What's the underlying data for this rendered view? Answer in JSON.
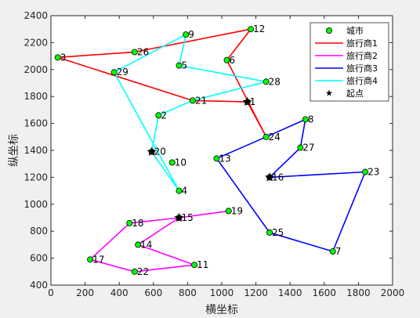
{
  "chart_data": {
    "type": "scatter",
    "xlabel": "横坐标",
    "ylabel": "纵坐标",
    "xlim": [
      0,
      2000
    ],
    "ylim": [
      400,
      2400
    ],
    "xticks": [
      0,
      200,
      400,
      600,
      800,
      1000,
      1200,
      1400,
      1600,
      1800,
      2000
    ],
    "yticks": [
      400,
      600,
      800,
      1000,
      1200,
      1400,
      1600,
      1800,
      2000,
      2200,
      2400
    ],
    "grid": false,
    "legend_position": "top-right",
    "cities": [
      {
        "id": "1",
        "x": 1150,
        "y": 1760
      },
      {
        "id": "2",
        "x": 630,
        "y": 1660
      },
      {
        "id": "3",
        "x": 40,
        "y": 2090
      },
      {
        "id": "4",
        "x": 750,
        "y": 1100
      },
      {
        "id": "5",
        "x": 750,
        "y": 2030
      },
      {
        "id": "6",
        "x": 1030,
        "y": 2070
      },
      {
        "id": "7",
        "x": 1650,
        "y": 650
      },
      {
        "id": "8",
        "x": 1490,
        "y": 1630
      },
      {
        "id": "9",
        "x": 790,
        "y": 2260
      },
      {
        "id": "10",
        "x": 710,
        "y": 1310
      },
      {
        "id": "11",
        "x": 840,
        "y": 550
      },
      {
        "id": "12",
        "x": 1170,
        "y": 2300
      },
      {
        "id": "13",
        "x": 970,
        "y": 1340
      },
      {
        "id": "14",
        "x": 510,
        "y": 700
      },
      {
        "id": "15",
        "x": 750,
        "y": 900
      },
      {
        "id": "16",
        "x": 1280,
        "y": 1200
      },
      {
        "id": "17",
        "x": 230,
        "y": 590
      },
      {
        "id": "18",
        "x": 460,
        "y": 860
      },
      {
        "id": "19",
        "x": 1040,
        "y": 950
      },
      {
        "id": "20",
        "x": 590,
        "y": 1390
      },
      {
        "id": "21",
        "x": 830,
        "y": 1770
      },
      {
        "id": "22",
        "x": 490,
        "y": 500
      },
      {
        "id": "23",
        "x": 1840,
        "y": 1240
      },
      {
        "id": "24",
        "x": 1260,
        "y": 1500
      },
      {
        "id": "25",
        "x": 1280,
        "y": 790
      },
      {
        "id": "26",
        "x": 490,
        "y": 2130
      },
      {
        "id": "27",
        "x": 1460,
        "y": 1420
      },
      {
        "id": "28",
        "x": 1260,
        "y": 1910
      },
      {
        "id": "29",
        "x": 370,
        "y": 1980
      }
    ],
    "series": [
      {
        "name": "旅行商1",
        "color": "#ff0000",
        "route": [
          "1",
          "21",
          "3",
          "26",
          "12",
          "6",
          "24",
          "1"
        ]
      },
      {
        "name": "旅行商2",
        "color": "#ff00ff",
        "route": [
          "15",
          "19",
          "15",
          "18",
          "17",
          "22",
          "11",
          "14",
          "15"
        ]
      },
      {
        "name": "旅行商3",
        "color": "#0000ff",
        "route": [
          "16",
          "23",
          "7",
          "25",
          "13",
          "24",
          "8",
          "27",
          "16"
        ]
      },
      {
        "name": "旅行商4",
        "color": "#00ffff",
        "route": [
          "20",
          "2",
          "21",
          "28",
          "5",
          "9",
          "29",
          "4",
          "20"
        ]
      }
    ],
    "start_points": [
      "1",
      "15",
      "16",
      "20"
    ],
    "legend": {
      "city": "城市",
      "start": "起点"
    },
    "colors": {
      "city_fill": "#00ff00",
      "city_edge": "#000000",
      "axes_bg": "#ffffff",
      "figure_bg": "#f0f0f0"
    }
  }
}
